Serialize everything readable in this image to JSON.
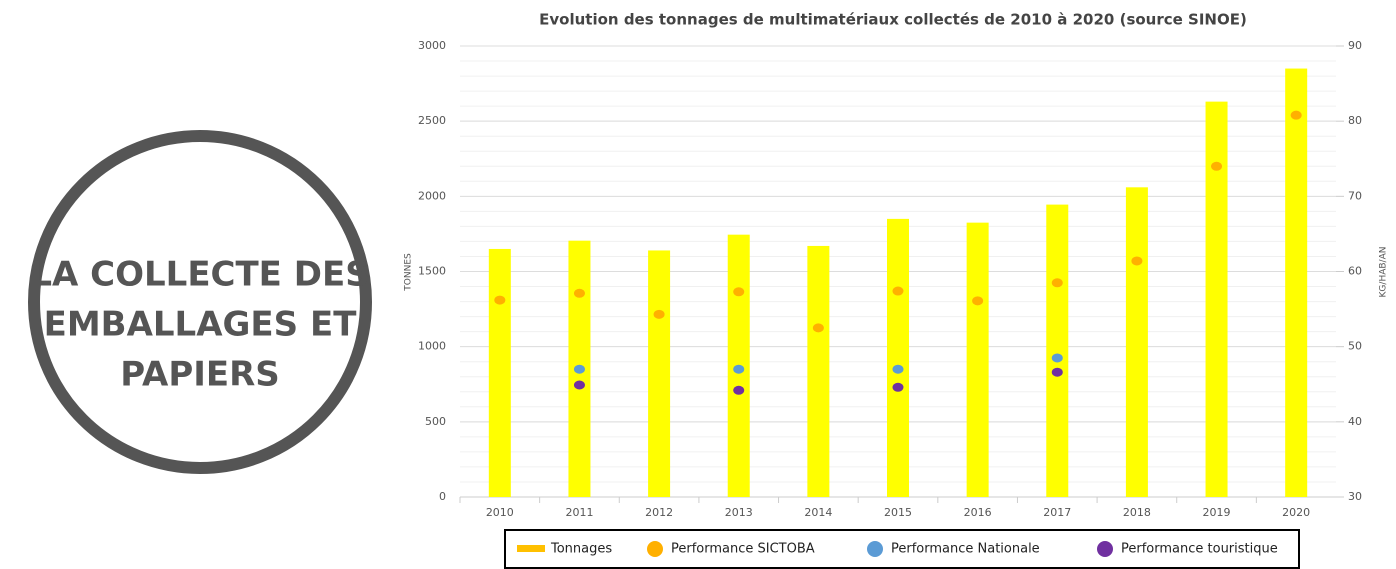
{
  "side_panel": {
    "lines": [
      "LA COLLECTE DES",
      "EMBALLAGES ET",
      "PAPIERS"
    ]
  },
  "chart_data": {
    "type": "bar",
    "title": "Evolution des tonnages de multimatériaux collectés de 2010 à 2020 (source SINOE)",
    "ylabel": "TONNES",
    "y2label": "KG/HAB/AN",
    "categories": [
      "2010",
      "2011",
      "2012",
      "2013",
      "2014",
      "2015",
      "2016",
      "2017",
      "2018",
      "2019",
      "2020"
    ],
    "series": [
      {
        "name": "Tonnages",
        "type": "bar",
        "color": "#ffff00",
        "legend_color": "#ffc000",
        "values": [
          1650,
          1705,
          1640,
          1745,
          1670,
          1850,
          1825,
          1945,
          2060,
          2630,
          2850
        ]
      },
      {
        "name": "Performance SICTOBA",
        "type": "scatter",
        "axis": "y2",
        "color": "#ffb000",
        "values": [
          56.2,
          57.1,
          54.3,
          57.3,
          52.5,
          57.4,
          56.1,
          58.5,
          61.4,
          74.0,
          80.8
        ]
      },
      {
        "name": "Performance Nationale",
        "type": "scatter",
        "axis": "y2",
        "color": "#5b9bd5",
        "values": [
          null,
          47.0,
          null,
          47.0,
          null,
          47.0,
          null,
          48.5,
          null,
          null,
          null
        ]
      },
      {
        "name": "Performance touristique",
        "type": "scatter",
        "axis": "y2",
        "color": "#7030a0",
        "values": [
          null,
          44.9,
          null,
          44.2,
          null,
          44.6,
          null,
          46.6,
          null,
          null,
          null
        ]
      }
    ],
    "ylim": [
      0,
      3000
    ],
    "yticks": [
      0,
      500,
      1000,
      1500,
      2000,
      2500,
      3000
    ],
    "y2lim": [
      30,
      90
    ],
    "y2ticks": [
      30,
      40,
      50,
      60,
      70,
      80,
      90
    ],
    "grid": true
  }
}
